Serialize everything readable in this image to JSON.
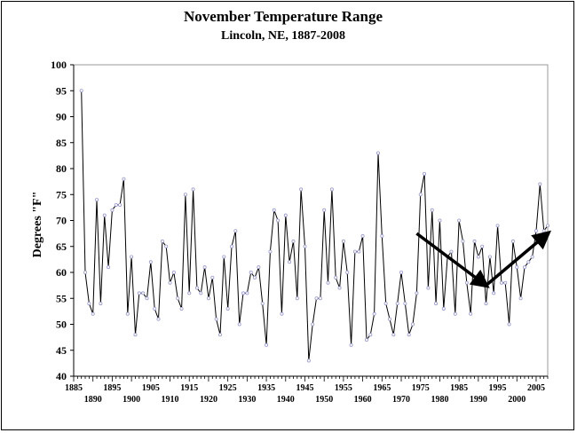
{
  "chart_data": {
    "type": "line",
    "title": "November Temperature Range",
    "subtitle": "Lincoln, NE, 1887-2008",
    "ylabel": "Degrees \"F\"",
    "xlabel": "",
    "ylim": [
      40,
      100
    ],
    "xlim": [
      1885,
      2008
    ],
    "grid": false,
    "legend": "none",
    "line_color": "#000000",
    "marker_color": "#9999cc",
    "arrow_color": "#000000",
    "yticks": [
      40,
      45,
      50,
      55,
      60,
      65,
      70,
      75,
      80,
      85,
      90,
      95,
      100
    ],
    "xticks_upper": [
      1885,
      1895,
      1905,
      1915,
      1925,
      1935,
      1945,
      1955,
      1965,
      1975,
      1985,
      1995,
      2005
    ],
    "xticks_lower": [
      1890,
      1900,
      1910,
      1920,
      1930,
      1940,
      1950,
      1960,
      1970,
      1980,
      1990,
      2000
    ],
    "x": [
      1887,
      1888,
      1889,
      1890,
      1891,
      1892,
      1893,
      1894,
      1895,
      1896,
      1897,
      1898,
      1899,
      1900,
      1901,
      1902,
      1903,
      1904,
      1905,
      1906,
      1907,
      1908,
      1909,
      1910,
      1911,
      1912,
      1913,
      1914,
      1915,
      1916,
      1917,
      1918,
      1919,
      1920,
      1921,
      1922,
      1923,
      1924,
      1925,
      1926,
      1927,
      1928,
      1929,
      1930,
      1931,
      1932,
      1933,
      1934,
      1935,
      1936,
      1937,
      1938,
      1939,
      1940,
      1941,
      1942,
      1943,
      1944,
      1945,
      1946,
      1947,
      1948,
      1949,
      1950,
      1951,
      1952,
      1953,
      1954,
      1955,
      1956,
      1957,
      1958,
      1959,
      1960,
      1961,
      1962,
      1963,
      1964,
      1965,
      1966,
      1967,
      1968,
      1969,
      1970,
      1971,
      1972,
      1973,
      1974,
      1975,
      1976,
      1977,
      1978,
      1979,
      1980,
      1981,
      1982,
      1983,
      1984,
      1985,
      1986,
      1987,
      1988,
      1989,
      1990,
      1991,
      1992,
      1993,
      1994,
      1995,
      1996,
      1997,
      1998,
      1999,
      2000,
      2001,
      2002,
      2003,
      2004,
      2005,
      2006,
      2007,
      2008
    ],
    "y": [
      95,
      60,
      54,
      52,
      74,
      54,
      71,
      61,
      72,
      73,
      73,
      78,
      52,
      63,
      48,
      56,
      56,
      55,
      62,
      53,
      51,
      66,
      65,
      58,
      60,
      55,
      53,
      75,
      56,
      76,
      57,
      56,
      61,
      55,
      59,
      51,
      48,
      63,
      53,
      65,
      68,
      50,
      56,
      56,
      60,
      59,
      61,
      54,
      46,
      64,
      72,
      70,
      52,
      71,
      62,
      66,
      55,
      76,
      65,
      43,
      50,
      55,
      55,
      72,
      58,
      76,
      59,
      57,
      66,
      60,
      46,
      64,
      64,
      67,
      47,
      48,
      52,
      83,
      67,
      54,
      51,
      48,
      54,
      60,
      54,
      48,
      50,
      56,
      75,
      79,
      57,
      72,
      54,
      70,
      53,
      63,
      64,
      52,
      70,
      66,
      58,
      52,
      66,
      63,
      65,
      54,
      63,
      56,
      69,
      58,
      58,
      50,
      66,
      61,
      55,
      61,
      62,
      63,
      68,
      77,
      68,
      69
    ],
    "annotations": [
      {
        "type": "arrow",
        "from": [
          1974,
          67.5
        ],
        "to": [
          1992,
          57.5
        ]
      },
      {
        "type": "arrow",
        "from": [
          1992,
          57.5
        ],
        "to": [
          2008,
          67.5
        ]
      }
    ]
  }
}
